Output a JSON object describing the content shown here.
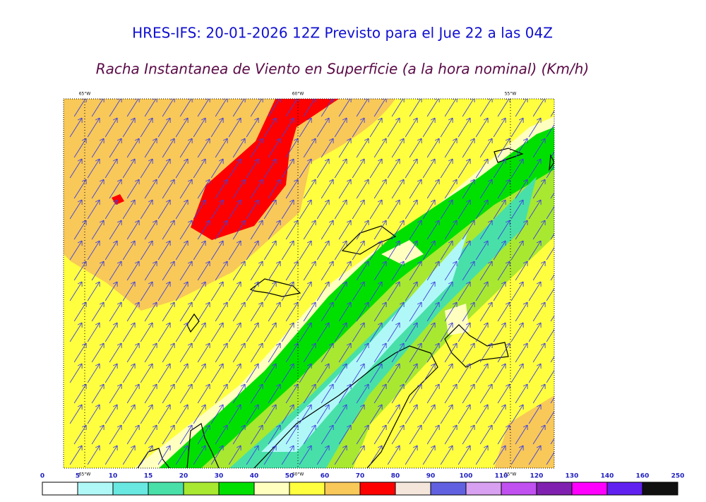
{
  "title": "HRES-IFS: 20-01-2026 12Z Previsto para el Jue 22 a las 04Z",
  "subtitle": "Racha Instantanea de Viento en Superficie (a la hora nominal) (Km/h)",
  "map": {
    "longitude_labels": {
      "top": [
        "65°W",
        "60°W",
        "55°W"
      ],
      "bottom": [
        "65°W",
        "60°W",
        "55°W"
      ]
    }
  },
  "colorbar": {
    "ticks": [
      0,
      5,
      10,
      15,
      20,
      30,
      40,
      50,
      60,
      70,
      80,
      90,
      100,
      110,
      120,
      130,
      140,
      160,
      250
    ],
    "colors": [
      "#ffffff",
      "#b0f8f8",
      "#68e8e0",
      "#48e0a8",
      "#a8e830",
      "#00e000",
      "#ffffc0",
      "#ffff40",
      "#f8c858",
      "#ff0000",
      "#f5e6dc",
      "#6060e0",
      "#d8a0f0",
      "#c050f0",
      "#8020b0",
      "#ff00ff",
      "#6020f0",
      "#101010"
    ]
  }
}
